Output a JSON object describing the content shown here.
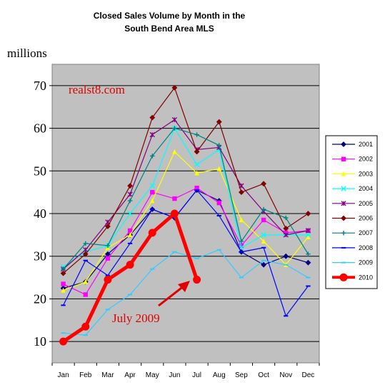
{
  "chart_data": {
    "type": "line",
    "title_lines": [
      "Closed Sales Volume by Month in the",
      "South Bend Area MLS"
    ],
    "ylabel": "millions",
    "ylim": [
      5,
      75
    ],
    "yticks": [
      10,
      20,
      30,
      40,
      50,
      60,
      70
    ],
    "grid": true,
    "legend_position": "right",
    "categories": [
      "Jan",
      "Feb",
      "Mar",
      "Apr",
      "May",
      "Jun",
      "Jul",
      "Aug",
      "Sep",
      "Oct",
      "Nov",
      "Dec"
    ],
    "series": [
      {
        "name": "2001",
        "color": "#000080",
        "marker": "diamond",
        "values": [
          22.5,
          24,
          30.5,
          35,
          41,
          39,
          45.5,
          43,
          31,
          28,
          30,
          28.5
        ]
      },
      {
        "name": "2002",
        "color": "#ff00ff",
        "marker": "square",
        "values": [
          23.5,
          21,
          29.5,
          36,
          45,
          43.5,
          46,
          42.5,
          32.5,
          38.5,
          35.5,
          36
        ]
      },
      {
        "name": "2003",
        "color": "#ffff00",
        "marker": "triangle",
        "values": [
          22,
          24,
          32,
          35,
          43,
          54.5,
          49.5,
          50.5,
          38.5,
          33.5,
          28,
          34.5
        ]
      },
      {
        "name": "2004",
        "color": "#00ffff",
        "marker": "x",
        "values": [
          27.5,
          31,
          32.5,
          40,
          46.5,
          60,
          51.5,
          55,
          32,
          35,
          35,
          35
        ]
      },
      {
        "name": "2005",
        "color": "#800080",
        "marker": "star",
        "values": [
          27,
          31.5,
          38,
          44.5,
          58.5,
          62,
          55,
          55.5,
          46.5,
          40.5,
          35,
          36
        ]
      },
      {
        "name": "2006",
        "color": "#800000",
        "marker": "diamond",
        "values": [
          26,
          30.5,
          37,
          46.5,
          62.5,
          69.5,
          54.5,
          61.5,
          45,
          47,
          36.5,
          40
        ]
      },
      {
        "name": "2007",
        "color": "#008080",
        "marker": "plus",
        "values": [
          27,
          33,
          32.5,
          43,
          53.5,
          60,
          58.5,
          56,
          33.5,
          41,
          39,
          30.5
        ]
      },
      {
        "name": "2008",
        "color": "#0000ff",
        "marker": "dash",
        "values": [
          18.5,
          29,
          25.5,
          33,
          41,
          39,
          45.5,
          39.5,
          31,
          32,
          16,
          23
        ]
      },
      {
        "name": "2009",
        "color": "#33ccff",
        "marker": "dash",
        "values": [
          12,
          11.5,
          17.5,
          21,
          27,
          31,
          29.5,
          31.5,
          25,
          29,
          28,
          25
        ]
      },
      {
        "name": "2010",
        "color": "#ff0000",
        "marker": "circle",
        "values": [
          10,
          13.5,
          24.5,
          28,
          35.5,
          40,
          24.5,
          null,
          null,
          null,
          null,
          null
        ]
      }
    ],
    "annotations": {
      "watermark": "realst8.com",
      "arrow_label": "July 2009"
    }
  }
}
